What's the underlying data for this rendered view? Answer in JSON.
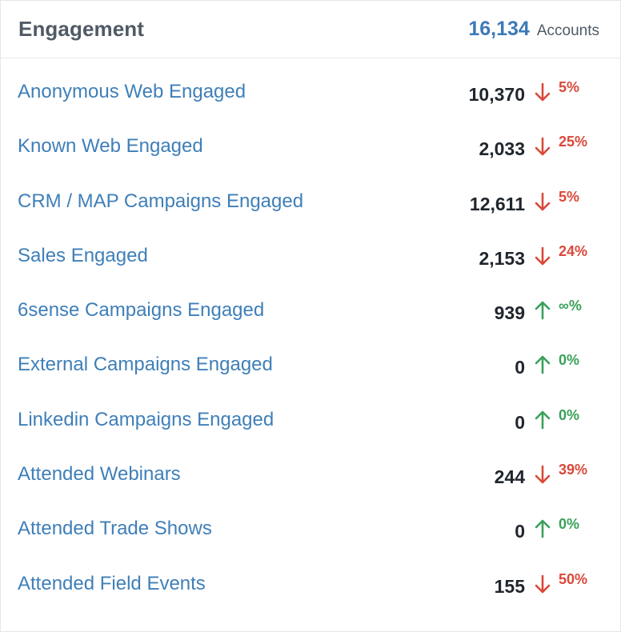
{
  "header": {
    "title": "Engagement",
    "total_value": "16,134",
    "total_label": "Accounts"
  },
  "colors": {
    "link": "#3f7fb8",
    "down": "#d9493a",
    "up": "#3aa05a",
    "value": "#20262d"
  },
  "rows": [
    {
      "label": "Anonymous Web Engaged",
      "value": "10,370",
      "trend": "down",
      "change": "5%"
    },
    {
      "label": "Known Web Engaged",
      "value": "2,033",
      "trend": "down",
      "change": "25%"
    },
    {
      "label": "CRM / MAP Campaigns Engaged",
      "value": "12,611",
      "trend": "down",
      "change": "5%"
    },
    {
      "label": "Sales Engaged",
      "value": "2,153",
      "trend": "down",
      "change": "24%"
    },
    {
      "label": "6sense Campaigns Engaged",
      "value": "939",
      "trend": "up",
      "change": "∞%"
    },
    {
      "label": "External Campaigns Engaged",
      "value": "0",
      "trend": "up",
      "change": "0%"
    },
    {
      "label": "Linkedin Campaigns Engaged",
      "value": "0",
      "trend": "up",
      "change": "0%"
    },
    {
      "label": "Attended Webinars",
      "value": "244",
      "trend": "down",
      "change": "39%"
    },
    {
      "label": "Attended Trade Shows",
      "value": "0",
      "trend": "up",
      "change": "0%"
    },
    {
      "label": "Attended Field Events",
      "value": "155",
      "trend": "down",
      "change": "50%"
    }
  ]
}
